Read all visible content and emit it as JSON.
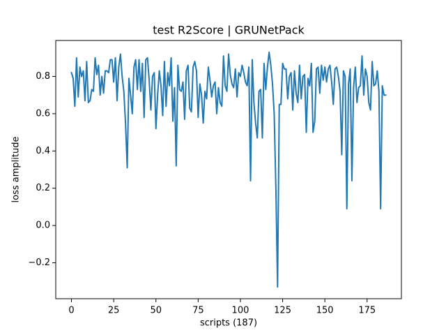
{
  "chart_data": {
    "type": "line",
    "title": "test R2Score | GRUNetPack",
    "xlabel": "scripts (187)",
    "ylabel": "loss amplitude",
    "color": "#1f77b4",
    "values": [
      0.82,
      0.79,
      0.64,
      0.9,
      0.69,
      0.85,
      0.8,
      0.83,
      0.67,
      0.88,
      0.66,
      0.67,
      0.73,
      0.72,
      0.9,
      0.81,
      0.86,
      0.7,
      0.8,
      0.71,
      0.83,
      0.83,
      0.82,
      0.89,
      0.89,
      0.77,
      0.9,
      0.67,
      0.85,
      0.92,
      0.8,
      0.72,
      0.55,
      0.31,
      0.79,
      0.7,
      0.6,
      0.85,
      0.89,
      0.73,
      0.89,
      0.72,
      0.87,
      0.58,
      0.89,
      0.9,
      0.78,
      0.62,
      0.8,
      0.82,
      0.52,
      0.7,
      0.83,
      0.75,
      0.59,
      0.88,
      0.64,
      0.82,
      0.75,
      0.9,
      0.56,
      0.74,
      0.32,
      0.86,
      0.73,
      0.72,
      0.77,
      0.57,
      0.83,
      0.86,
      0.63,
      0.61,
      0.85,
      0.88,
      0.83,
      0.58,
      0.76,
      0.7,
      0.55,
      0.72,
      0.68,
      0.85,
      0.78,
      0.69,
      0.75,
      0.77,
      0.6,
      0.74,
      0.66,
      0.64,
      0.91,
      0.75,
      0.72,
      0.92,
      0.81,
      0.76,
      0.74,
      0.84,
      0.69,
      0.82,
      0.8,
      0.86,
      0.82,
      0.77,
      0.75,
      0.85,
      0.24,
      0.89,
      0.66,
      0.55,
      0.47,
      0.72,
      0.73,
      0.47,
      0.87,
      0.73,
      0.85,
      0.93,
      0.86,
      0.76,
      0.6,
      0.2,
      -0.33,
      0.65,
      0.65,
      0.87,
      0.84,
      0.84,
      0.68,
      0.8,
      0.82,
      0.62,
      0.83,
      0.71,
      0.66,
      0.86,
      0.68,
      0.8,
      0.81,
      0.5,
      0.79,
      0.75,
      0.87,
      0.5,
      0.56,
      0.84,
      0.85,
      0.71,
      0.86,
      0.78,
      0.85,
      0.77,
      0.84,
      0.86,
      0.77,
      0.65,
      0.84,
      0.85,
      0.8,
      0.72,
      0.38,
      0.83,
      0.8,
      0.09,
      0.76,
      0.84,
      0.24,
      0.74,
      0.85,
      0.66,
      0.74,
      0.75,
      0.91,
      0.7,
      0.84,
      0.8,
      0.66,
      0.62,
      0.88,
      0.75,
      0.76,
      0.83,
      0.72,
      0.09,
      0.75,
      0.7,
      0.7
    ],
    "xlim": [
      -9.3,
      195.3
    ],
    "xticks": [
      0,
      25,
      50,
      75,
      100,
      125,
      150,
      175
    ],
    "ylim": [
      -0.393,
      0.993
    ],
    "yticks": [
      {
        "value": -0.2,
        "label": "−0.2"
      },
      {
        "value": 0,
        "label": "0.0"
      },
      0.2,
      0.4,
      0.6,
      0.8
    ]
  }
}
